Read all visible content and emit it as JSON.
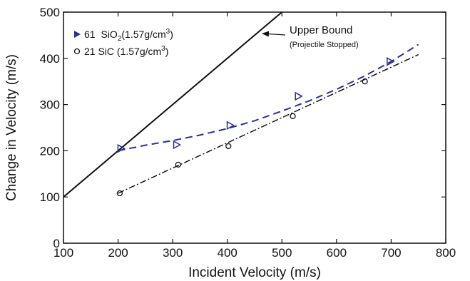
{
  "chart_data": {
    "type": "scatter",
    "xlabel": "Incident Velocity (m/s)",
    "ylabel": "Change in Velocity (m/s)",
    "xlim": [
      100,
      800
    ],
    "ylim": [
      0,
      500
    ],
    "x_ticks": [
      100,
      200,
      300,
      400,
      500,
      600,
      700,
      800
    ],
    "y_ticks": [
      0,
      100,
      200,
      300,
      400,
      500
    ],
    "grid": false,
    "legend_position": "top-left",
    "series": [
      {
        "key": "sio2",
        "legend_number": "61",
        "legend_material": "SiO",
        "legend_subscript": "2",
        "legend_density": "(1.57g/cm",
        "legend_superscript": "3",
        "legend_close": ")",
        "marker": "triangle-right",
        "color": "#2b2f8f",
        "points": [
          {
            "x": 205,
            "y": 205
          },
          {
            "x": 307,
            "y": 213
          },
          {
            "x": 405,
            "y": 255
          },
          {
            "x": 530,
            "y": 318
          },
          {
            "x": 698,
            "y": 393
          }
        ],
        "fit": {
          "style": "dashed",
          "color": "#2b2f8f",
          "points": [
            [
              200,
              200
            ],
            [
              250,
              212
            ],
            [
              300,
              222
            ],
            [
              350,
              234
            ],
            [
              400,
              248
            ],
            [
              450,
              265
            ],
            [
              500,
              286
            ],
            [
              550,
              308
            ],
            [
              600,
              333
            ],
            [
              650,
              361
            ],
            [
              700,
              393
            ],
            [
              750,
              430
            ]
          ]
        }
      },
      {
        "key": "sic",
        "legend_text": "21 SiC  (1.57g/cm",
        "legend_superscript": "3",
        "legend_close": ")",
        "marker": "circle",
        "color": "#111111",
        "points": [
          {
            "x": 203,
            "y": 108
          },
          {
            "x": 310,
            "y": 170
          },
          {
            "x": 402,
            "y": 210
          },
          {
            "x": 520,
            "y": 275
          },
          {
            "x": 652,
            "y": 350
          }
        ],
        "fit": {
          "style": "dash-dot",
          "color": "#111111",
          "points": [
            [
              200,
              108
            ],
            [
              750,
              408
            ]
          ]
        }
      }
    ],
    "upper_bound": {
      "line_points": [
        [
          100,
          100
        ],
        [
          500,
          500
        ]
      ],
      "color": "#111111",
      "label": "Upper Bound",
      "sublabel": "(Projectile Stopped)",
      "arrow_to": [
        488,
        490
      ]
    }
  }
}
